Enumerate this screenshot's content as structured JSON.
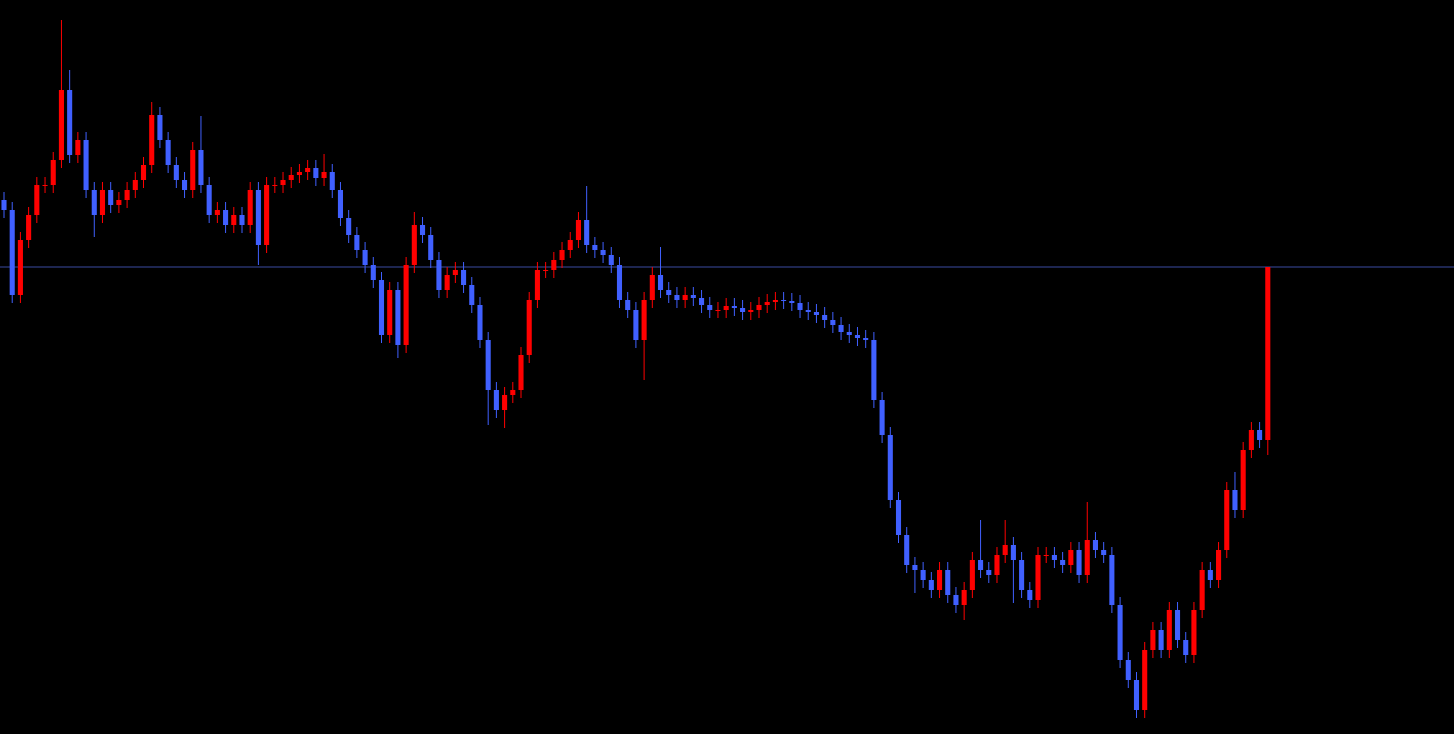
{
  "chart_data": {
    "type": "candlestick",
    "background": "#000000",
    "up_color": "#ff0000",
    "down_color": "#4060ff",
    "hline": 467,
    "hline_color": "#3a4aa0",
    "ylim": [
      0,
      734
    ],
    "open": [
      534,
      524,
      439,
      494,
      519,
      549,
      549,
      574,
      644,
      579,
      594,
      544,
      519,
      544,
      529,
      534,
      544,
      554,
      569,
      619,
      594,
      569,
      554,
      544,
      584,
      549,
      519,
      524,
      509,
      519,
      509,
      544,
      489,
      549,
      549,
      554,
      559,
      562,
      566,
      556,
      562,
      544,
      516,
      499,
      484,
      469,
      454,
      399,
      444,
      389,
      469,
      509,
      499,
      474,
      444,
      459,
      464,
      449,
      429,
      394,
      344,
      324,
      339,
      344,
      379,
      434,
      464,
      464,
      474,
      484,
      494,
      514,
      489,
      484,
      479,
      469,
      434,
      424,
      394,
      434,
      459,
      444,
      439,
      434,
      439,
      436,
      429,
      424,
      424,
      428,
      426,
      422,
      424,
      429,
      432,
      434,
      433,
      431,
      424,
      422,
      419,
      414,
      409,
      402,
      399,
      396,
      394,
      334,
      299,
      234,
      199,
      169,
      164,
      154,
      144,
      164,
      139,
      129,
      144,
      174,
      164,
      159,
      179,
      189,
      174,
      144,
      134,
      179,
      179,
      174,
      169,
      184,
      159,
      194,
      184,
      179,
      129,
      74,
      54,
      24,
      84,
      104,
      84,
      124,
      94,
      79,
      124,
      164,
      154,
      184,
      244,
      224,
      284,
      304,
      294
    ],
    "high": [
      542,
      532,
      502,
      527,
      557,
      557,
      582,
      714,
      664,
      602,
      602,
      552,
      552,
      552,
      542,
      552,
      562,
      577,
      632,
      627,
      602,
      577,
      562,
      592,
      618,
      557,
      532,
      532,
      527,
      527,
      552,
      552,
      557,
      557,
      562,
      567,
      570,
      574,
      574,
      580,
      570,
      552,
      524,
      507,
      492,
      477,
      462,
      452,
      452,
      477,
      522,
      517,
      507,
      482,
      467,
      472,
      472,
      457,
      437,
      402,
      352,
      347,
      352,
      387,
      442,
      472,
      472,
      482,
      492,
      502,
      522,
      548,
      497,
      492,
      487,
      477,
      442,
      432,
      442,
      467,
      487,
      452,
      447,
      447,
      447,
      444,
      437,
      432,
      436,
      436,
      434,
      432,
      437,
      440,
      442,
      442,
      441,
      439,
      432,
      430,
      427,
      422,
      417,
      410,
      407,
      404,
      402,
      342,
      307,
      242,
      207,
      177,
      172,
      162,
      172,
      172,
      147,
      152,
      182,
      214,
      172,
      187,
      214,
      197,
      182,
      152,
      187,
      187,
      187,
      182,
      192,
      192,
      232,
      202,
      192,
      187,
      137,
      82,
      62,
      92,
      112,
      112,
      132,
      132,
      102,
      132,
      172,
      172,
      192,
      252,
      262,
      292,
      312,
      312,
      467
    ],
    "low": [
      516,
      431,
      431,
      486,
      511,
      541,
      541,
      566,
      571,
      571,
      536,
      497,
      511,
      521,
      521,
      526,
      536,
      546,
      561,
      586,
      561,
      546,
      536,
      536,
      541,
      511,
      511,
      501,
      501,
      501,
      501,
      469,
      481,
      541,
      541,
      546,
      551,
      554,
      548,
      548,
      536,
      508,
      491,
      476,
      461,
      446,
      391,
      391,
      376,
      381,
      461,
      491,
      466,
      436,
      436,
      451,
      441,
      421,
      386,
      309,
      316,
      306,
      331,
      336,
      371,
      426,
      456,
      456,
      466,
      476,
      486,
      481,
      476,
      471,
      461,
      426,
      416,
      386,
      354,
      426,
      436,
      431,
      426,
      426,
      428,
      421,
      416,
      416,
      416,
      418,
      414,
      414,
      416,
      421,
      424,
      425,
      423,
      416,
      414,
      411,
      406,
      401,
      394,
      391,
      388,
      386,
      326,
      291,
      226,
      191,
      161,
      141,
      146,
      136,
      136,
      131,
      121,
      114,
      136,
      156,
      151,
      151,
      171,
      131,
      136,
      126,
      126,
      171,
      166,
      161,
      161,
      151,
      151,
      176,
      171,
      121,
      66,
      46,
      16,
      16,
      76,
      76,
      76,
      86,
      71,
      71,
      116,
      146,
      146,
      176,
      216,
      216,
      276,
      286,
      279
    ],
    "close": [
      524,
      439,
      494,
      519,
      549,
      549,
      574,
      644,
      579,
      594,
      544,
      519,
      544,
      529,
      534,
      544,
      554,
      569,
      619,
      594,
      569,
      554,
      544,
      584,
      549,
      519,
      524,
      509,
      519,
      509,
      544,
      489,
      549,
      549,
      554,
      559,
      562,
      566,
      556,
      562,
      544,
      516,
      499,
      484,
      469,
      454,
      399,
      444,
      389,
      469,
      509,
      499,
      474,
      444,
      459,
      464,
      449,
      429,
      394,
      344,
      324,
      339,
      344,
      379,
      434,
      464,
      464,
      474,
      484,
      494,
      514,
      489,
      484,
      479,
      469,
      434,
      424,
      394,
      434,
      459,
      444,
      439,
      434,
      439,
      436,
      429,
      424,
      424,
      428,
      426,
      422,
      424,
      429,
      432,
      434,
      433,
      431,
      424,
      422,
      419,
      414,
      409,
      402,
      399,
      396,
      394,
      334,
      299,
      234,
      199,
      169,
      164,
      154,
      144,
      164,
      139,
      129,
      144,
      174,
      164,
      159,
      179,
      189,
      174,
      144,
      134,
      179,
      179,
      174,
      169,
      184,
      159,
      194,
      184,
      179,
      129,
      74,
      54,
      24,
      84,
      104,
      84,
      124,
      94,
      79,
      124,
      164,
      154,
      184,
      244,
      224,
      284,
      304,
      294,
      467
    ]
  }
}
